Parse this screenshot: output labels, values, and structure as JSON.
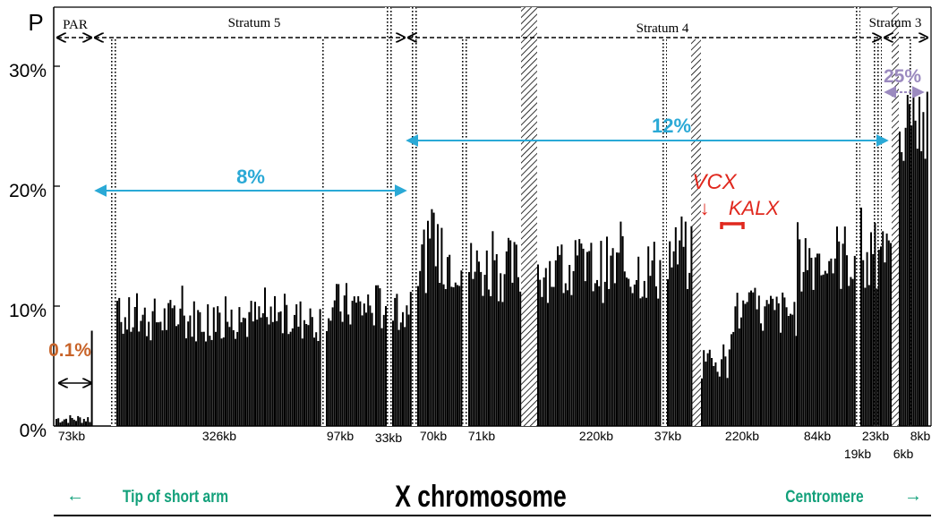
{
  "chart_data": {
    "type": "bar",
    "title": "X chromosome",
    "ylabel": "P",
    "ylim": [
      0,
      32
    ],
    "y_ticks": [
      {
        "value": 0,
        "label": "0%"
      },
      {
        "value": 10,
        "label": "10%"
      },
      {
        "value": 20,
        "label": "20%"
      },
      {
        "value": 30,
        "label": "30%"
      }
    ],
    "strata": [
      {
        "name": "PAR"
      },
      {
        "name": "Stratum 5"
      },
      {
        "name": "Stratum 4"
      },
      {
        "name": "Stratum 3"
      }
    ],
    "segments": [
      {
        "size_label": "73kb",
        "level": 0.6,
        "note_below": ""
      },
      {
        "size_label": "326kb",
        "level": 8.5,
        "note_below": ""
      },
      {
        "size_label": "97kb",
        "level": 9.5,
        "note_below": ""
      },
      {
        "size_label": "33kb",
        "level": 9.0,
        "note_below": ""
      },
      {
        "size_label": "70kb",
        "level": 13.5,
        "note_below": ""
      },
      {
        "size_label": "71kb",
        "level": 12.5,
        "note_below": ""
      },
      {
        "size_label": "220kb",
        "level": 12.5,
        "note_below": ""
      },
      {
        "size_label": "37kb",
        "level": 13.5,
        "note_below": ""
      },
      {
        "size_label": "220kb",
        "level": 9.0,
        "note_below": ""
      },
      {
        "size_label": "84kb",
        "level": 13.5,
        "note_below": ""
      },
      {
        "size_label": "23kb",
        "level": 13.0,
        "note_below": "19kb"
      },
      {
        "size_label": "8kb",
        "level": 24.0,
        "note_below": "6kb"
      }
    ],
    "annotations": {
      "par_rate": "0.1%",
      "stratum5_rate": "8%",
      "stratum4_rate": "12%",
      "stratum3_rate": "25%",
      "gene_vcx": "VCX",
      "gene_kalx": "KALX",
      "vcx_arrow": "↓"
    }
  },
  "footer": {
    "left_arrow": "←",
    "left_label": "Tip of short arm",
    "title": "X chromosome",
    "right_label": "Centromere",
    "right_arrow": "→"
  },
  "colors": {
    "bars": "#000000",
    "cyan": "#2aa9d6",
    "orange": "#c8642a",
    "purple": "#9b8abf",
    "red": "#e0281e",
    "teal_text": "#12a07a"
  }
}
